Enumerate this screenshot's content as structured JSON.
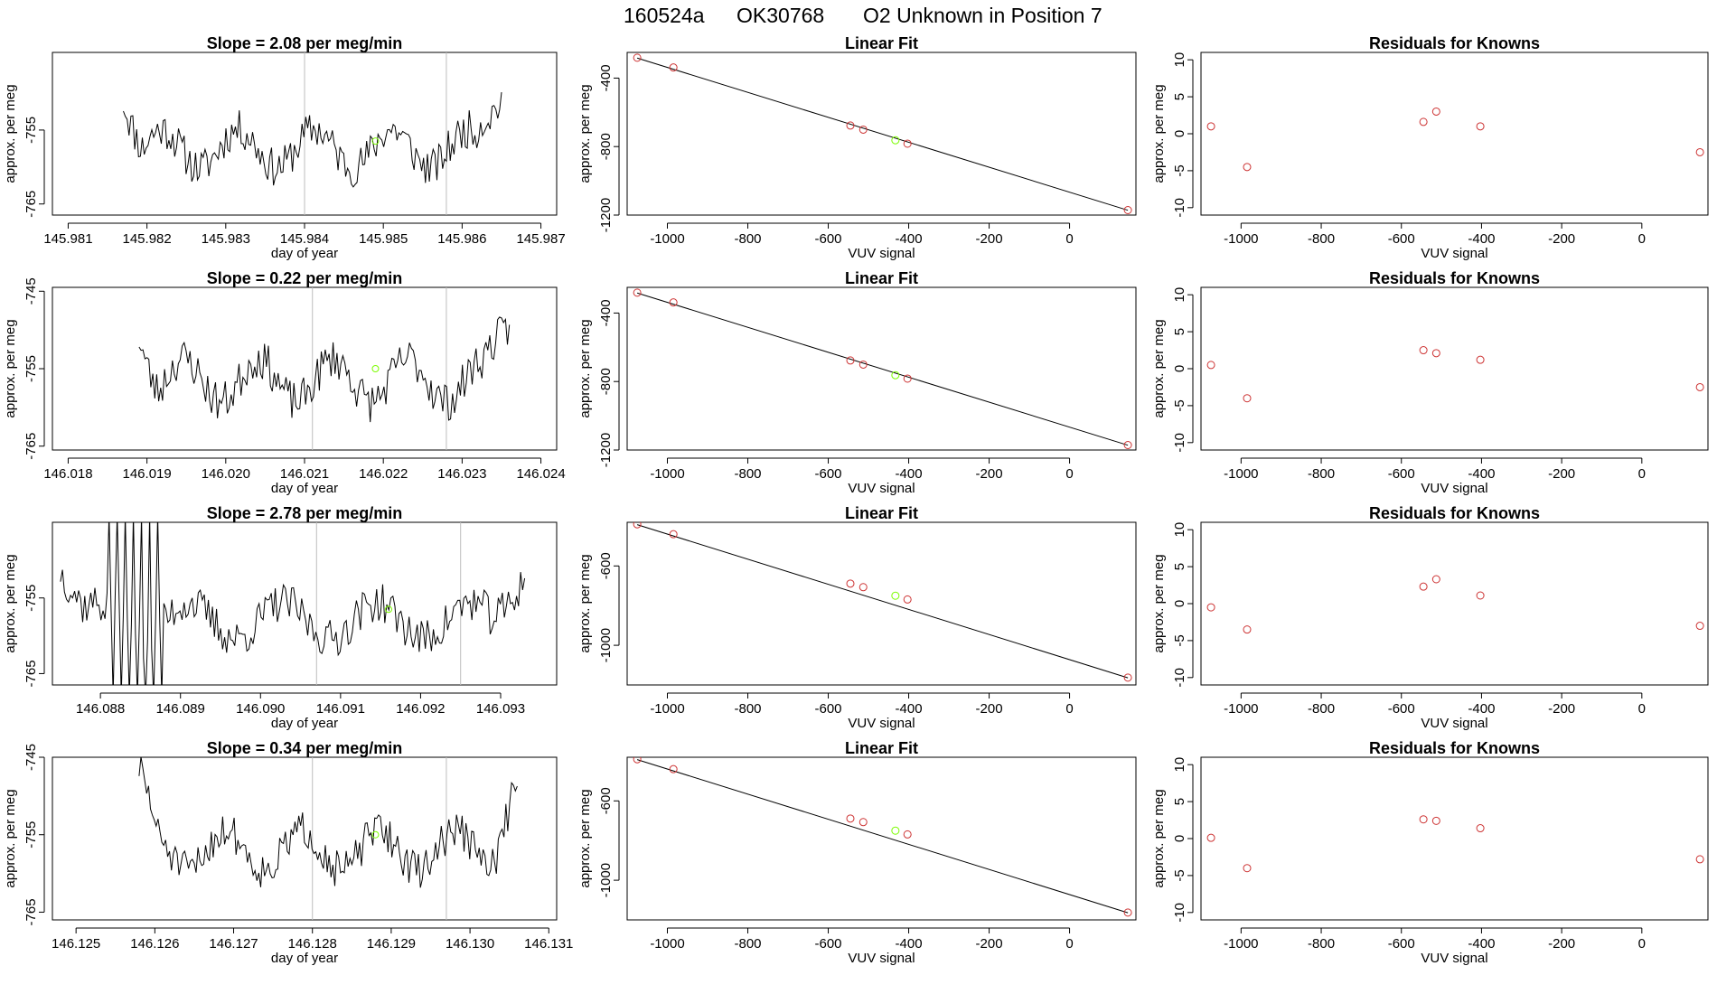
{
  "figure": {
    "header": {
      "run_id": "160524a",
      "tank_id": "OK30768",
      "description": "O2 Unknown in Position  7"
    }
  },
  "colors": {
    "trace": "#000000",
    "known_points": "#cd3333",
    "unknown_point": "#7CFC00",
    "marker_lines": "#bdbdbd",
    "fit_line": "#000000"
  },
  "chart_data": [
    {
      "type": "line",
      "row": 0,
      "column": "timeseries",
      "title": "Slope =  2.08  per meg/min",
      "xlabel": "day of year",
      "ylabel": "approx. per meg",
      "xlim": [
        145.9808,
        145.9872
      ],
      "ylim": [
        -766.5,
        -744.5
      ],
      "xticks": [
        145.981,
        145.982,
        145.983,
        145.984,
        145.985,
        145.986,
        145.987
      ],
      "xtick_labels": [
        "145.981",
        "145.982",
        "145.983",
        "145.984",
        "145.985",
        "145.986",
        "145.987"
      ],
      "yticks": [
        -765,
        -755
      ],
      "ytick_labels": [
        "-765",
        "-755"
      ],
      "x_start": 145.9817,
      "x_end": 145.9865,
      "n_points": 200,
      "mean": -757.5,
      "amplitude": 2.6,
      "noise": 2.6,
      "edge_rise": 9,
      "seed": 11,
      "markers": [
        145.984,
        145.9858
      ],
      "unknown_point": {
        "x": 145.9849,
        "y": -756.5
      }
    },
    {
      "type": "scatter",
      "row": 0,
      "column": "fit",
      "title": "Linear Fit",
      "xlabel": "VUV signal",
      "ylabel": "approx. per meg",
      "xlim": [
        -1100,
        165
      ],
      "ylim": [
        -1200,
        -250
      ],
      "xticks": [
        -1000,
        -800,
        -600,
        -400,
        -200,
        0
      ],
      "xtick_labels": [
        "-1000",
        "-800",
        "-600",
        "-400",
        "-200",
        "0"
      ],
      "yticks": [
        -1200,
        -800,
        -400
      ],
      "ytick_labels": [
        "-1200",
        "-800",
        "-400"
      ],
      "known_x": [
        -1075,
        -985,
        -545,
        -513,
        -403,
        145
      ],
      "known_y": [
        -281,
        -338,
        -677,
        -701,
        -783,
        -1171
      ],
      "unknown_point": {
        "x": -433,
        "y": -763
      },
      "fit_line": {
        "x": [
          -1075,
          145
        ],
        "y": [
          -283,
          -1172
        ]
      }
    },
    {
      "type": "scatter",
      "row": 0,
      "column": "residuals",
      "title": "Residuals for Knowns",
      "xlabel": "VUV signal",
      "ylabel": "approx. per meg",
      "xlim": [
        -1100,
        165
      ],
      "ylim": [
        -11,
        11
      ],
      "xticks": [
        -1000,
        -800,
        -600,
        -400,
        -200,
        0
      ],
      "xtick_labels": [
        "-1000",
        "-800",
        "-600",
        "-400",
        "-200",
        "0"
      ],
      "yticks": [
        -10,
        -5,
        0,
        5,
        10
      ],
      "ytick_labels": [
        "-10",
        "-5",
        "0",
        "5",
        "10"
      ],
      "x": [
        -1075,
        -985,
        -545,
        -513,
        -403,
        145
      ],
      "y": [
        1.0,
        -4.5,
        1.6,
        3.0,
        1.0,
        -2.5
      ]
    },
    {
      "type": "line",
      "row": 1,
      "column": "timeseries",
      "title": "Slope =  0.22  per meg/min",
      "xlabel": "day of year",
      "ylabel": "approx. per meg",
      "xlim": [
        146.0178,
        146.0242
      ],
      "ylim": [
        -765.5,
        -744.5
      ],
      "xticks": [
        146.018,
        146.019,
        146.02,
        146.021,
        146.022,
        146.023,
        146.024
      ],
      "xtick_labels": [
        "146.018",
        "146.019",
        "146.020",
        "146.021",
        "146.022",
        "146.023",
        "146.024"
      ],
      "yticks": [
        -765,
        -755,
        -745
      ],
      "ytick_labels": [
        "-765",
        "-755",
        "-745"
      ],
      "x_start": 146.0189,
      "x_end": 146.0236,
      "n_points": 190,
      "mean": -756.5,
      "amplitude": 2.8,
      "noise": 2.6,
      "edge_rise": 8,
      "seed": 23,
      "markers": [
        146.0211,
        146.0228
      ],
      "unknown_point": {
        "x": 146.0219,
        "y": -755.0
      }
    },
    {
      "type": "scatter",
      "row": 1,
      "column": "fit",
      "title": "Linear Fit",
      "xlabel": "VUV signal",
      "ylabel": "approx. per meg",
      "xlim": [
        -1100,
        165
      ],
      "ylim": [
        -1200,
        -250
      ],
      "xticks": [
        -1000,
        -800,
        -600,
        -400,
        -200,
        0
      ],
      "xtick_labels": [
        "-1000",
        "-800",
        "-600",
        "-400",
        "-200",
        "0"
      ],
      "yticks": [
        -1200,
        -800,
        -400
      ],
      "ytick_labels": [
        "-1200",
        "-800",
        "-400"
      ],
      "known_x": [
        -1075,
        -985,
        -545,
        -513,
        -403,
        145
      ],
      "known_y": [
        -281,
        -338,
        -677,
        -701,
        -783,
        -1171
      ],
      "unknown_point": {
        "x": -433,
        "y": -763
      },
      "fit_line": {
        "x": [
          -1075,
          145
        ],
        "y": [
          -283,
          -1172
        ]
      }
    },
    {
      "type": "scatter",
      "row": 1,
      "column": "residuals",
      "title": "Residuals for Knowns",
      "xlabel": "VUV signal",
      "ylabel": "approx. per meg",
      "xlim": [
        -1100,
        165
      ],
      "ylim": [
        -11,
        11
      ],
      "xticks": [
        -1000,
        -800,
        -600,
        -400,
        -200,
        0
      ],
      "xtick_labels": [
        "-1000",
        "-800",
        "-600",
        "-400",
        "-200",
        "0"
      ],
      "yticks": [
        -10,
        -5,
        0,
        5,
        10
      ],
      "ytick_labels": [
        "-10",
        "-5",
        "0",
        "5",
        "10"
      ],
      "x": [
        -1075,
        -985,
        -545,
        -513,
        -403,
        145
      ],
      "y": [
        0.5,
        -4.0,
        2.5,
        2.1,
        1.2,
        -2.5
      ]
    },
    {
      "type": "line",
      "row": 2,
      "column": "timeseries",
      "title": "Slope =  2.78  per meg/min",
      "xlabel": "day of year",
      "ylabel": "approx. per meg",
      "xlim": [
        146.0874,
        146.0937
      ],
      "ylim": [
        -766.5,
        -745
      ],
      "xticks": [
        146.088,
        146.089,
        146.09,
        146.091,
        146.092,
        146.093
      ],
      "xtick_labels": [
        "146.088",
        "146.089",
        "146.090",
        "146.091",
        "146.092",
        "146.093"
      ],
      "yticks": [
        -765,
        -755
      ],
      "ytick_labels": [
        "-765",
        "-755"
      ],
      "x_start": 146.0875,
      "x_end": 146.0933,
      "n_points": 230,
      "mean": -758.0,
      "amplitude": 2.4,
      "noise": 2.6,
      "edge_rise": 8,
      "seed": 37,
      "spikes": {
        "x_from": 146.0881,
        "x_to": 146.0888,
        "up": -744,
        "down": -768
      },
      "markers": [
        146.0907,
        146.0925
      ],
      "unknown_point": {
        "x": 146.0916,
        "y": -756.5
      }
    },
    {
      "type": "scatter",
      "row": 2,
      "column": "fit",
      "title": "Linear Fit",
      "xlabel": "VUV signal",
      "ylabel": "approx. per meg",
      "xlim": [
        -1100,
        165
      ],
      "ylim": [
        -1200,
        -380
      ],
      "xticks": [
        -1000,
        -800,
        -600,
        -400,
        -200,
        0
      ],
      "xtick_labels": [
        "-1000",
        "-800",
        "-600",
        "-400",
        "-200",
        "0"
      ],
      "yticks": [
        -1000,
        -600
      ],
      "ytick_labels": [
        "-1000",
        "-600"
      ],
      "known_x": [
        -1075,
        -985,
        -545,
        -513,
        -403,
        145
      ],
      "known_y": [
        -390,
        -440,
        -689,
        -707,
        -769,
        -1163
      ],
      "unknown_point": {
        "x": -433,
        "y": -750
      },
      "fit_line": {
        "x": [
          -1075,
          145
        ],
        "y": [
          -392,
          -1164
        ]
      }
    },
    {
      "type": "scatter",
      "row": 2,
      "column": "residuals",
      "title": "Residuals for Knowns",
      "xlabel": "VUV signal",
      "ylabel": "approx. per meg",
      "xlim": [
        -1100,
        165
      ],
      "ylim": [
        -11,
        11
      ],
      "xticks": [
        -1000,
        -800,
        -600,
        -400,
        -200,
        0
      ],
      "xtick_labels": [
        "-1000",
        "-800",
        "-600",
        "-400",
        "-200",
        "0"
      ],
      "yticks": [
        -10,
        -5,
        0,
        5,
        10
      ],
      "ytick_labels": [
        "-10",
        "-5",
        "0",
        "5",
        "10"
      ],
      "x": [
        -1075,
        -985,
        -545,
        -513,
        -403,
        145
      ],
      "y": [
        -0.5,
        -3.5,
        2.3,
        3.3,
        1.1,
        -3.0
      ]
    },
    {
      "type": "line",
      "row": 3,
      "column": "timeseries",
      "title": "Slope =  0.34  per meg/min",
      "xlabel": "day of year",
      "ylabel": "approx. per meg",
      "xlim": [
        146.1247,
        146.1311
      ],
      "ylim": [
        -766,
        -745
      ],
      "xticks": [
        146.125,
        146.126,
        146.127,
        146.128,
        146.129,
        146.13,
        146.131
      ],
      "xtick_labels": [
        "146.125",
        "146.126",
        "146.127",
        "146.128",
        "146.129",
        "146.130",
        "146.131"
      ],
      "yticks": [
        -765,
        -755,
        -745
      ],
      "ytick_labels": [
        "-765",
        "-755",
        "-745"
      ],
      "x_start": 146.1258,
      "x_end": 146.1306,
      "n_points": 200,
      "mean": -757.0,
      "amplitude": 2.6,
      "noise": 2.4,
      "edge_rise": 9,
      "seed": 51,
      "markers": [
        146.128,
        146.1297
      ],
      "unknown_point": {
        "x": 146.1288,
        "y": -755.0
      }
    },
    {
      "type": "scatter",
      "row": 3,
      "column": "fit",
      "title": "Linear Fit",
      "xlabel": "VUV signal",
      "ylabel": "approx. per meg",
      "xlim": [
        -1100,
        165
      ],
      "ylim": [
        -1200,
        -380
      ],
      "xticks": [
        -1000,
        -800,
        -600,
        -400,
        -200,
        0
      ],
      "xtick_labels": [
        "-1000",
        "-800",
        "-600",
        "-400",
        "-200",
        "0"
      ],
      "yticks": [
        -1000,
        -600
      ],
      "ytick_labels": [
        "-1000",
        "-600"
      ],
      "known_x": [
        -1075,
        -985,
        -545,
        -513,
        -403,
        145
      ],
      "known_y": [
        -390,
        -440,
        -689,
        -707,
        -769,
        -1163
      ],
      "unknown_point": {
        "x": -433,
        "y": -750
      },
      "fit_line": {
        "x": [
          -1075,
          145
        ],
        "y": [
          -392,
          -1164
        ]
      }
    },
    {
      "type": "scatter",
      "row": 3,
      "column": "residuals",
      "title": "Residuals for Knowns",
      "xlabel": "VUV signal",
      "ylabel": "approx. per meg",
      "xlim": [
        -1100,
        165
      ],
      "ylim": [
        -11,
        11
      ],
      "xticks": [
        -1000,
        -800,
        -600,
        -400,
        -200,
        0
      ],
      "xtick_labels": [
        "-1000",
        "-800",
        "-600",
        "-400",
        "-200",
        "0"
      ],
      "yticks": [
        -10,
        -5,
        0,
        5,
        10
      ],
      "ytick_labels": [
        "-10",
        "-5",
        "0",
        "5",
        "10"
      ],
      "x": [
        -1075,
        -985,
        -545,
        -513,
        -403,
        145
      ],
      "y": [
        0.1,
        -4.0,
        2.6,
        2.4,
        1.4,
        -2.8
      ]
    }
  ]
}
